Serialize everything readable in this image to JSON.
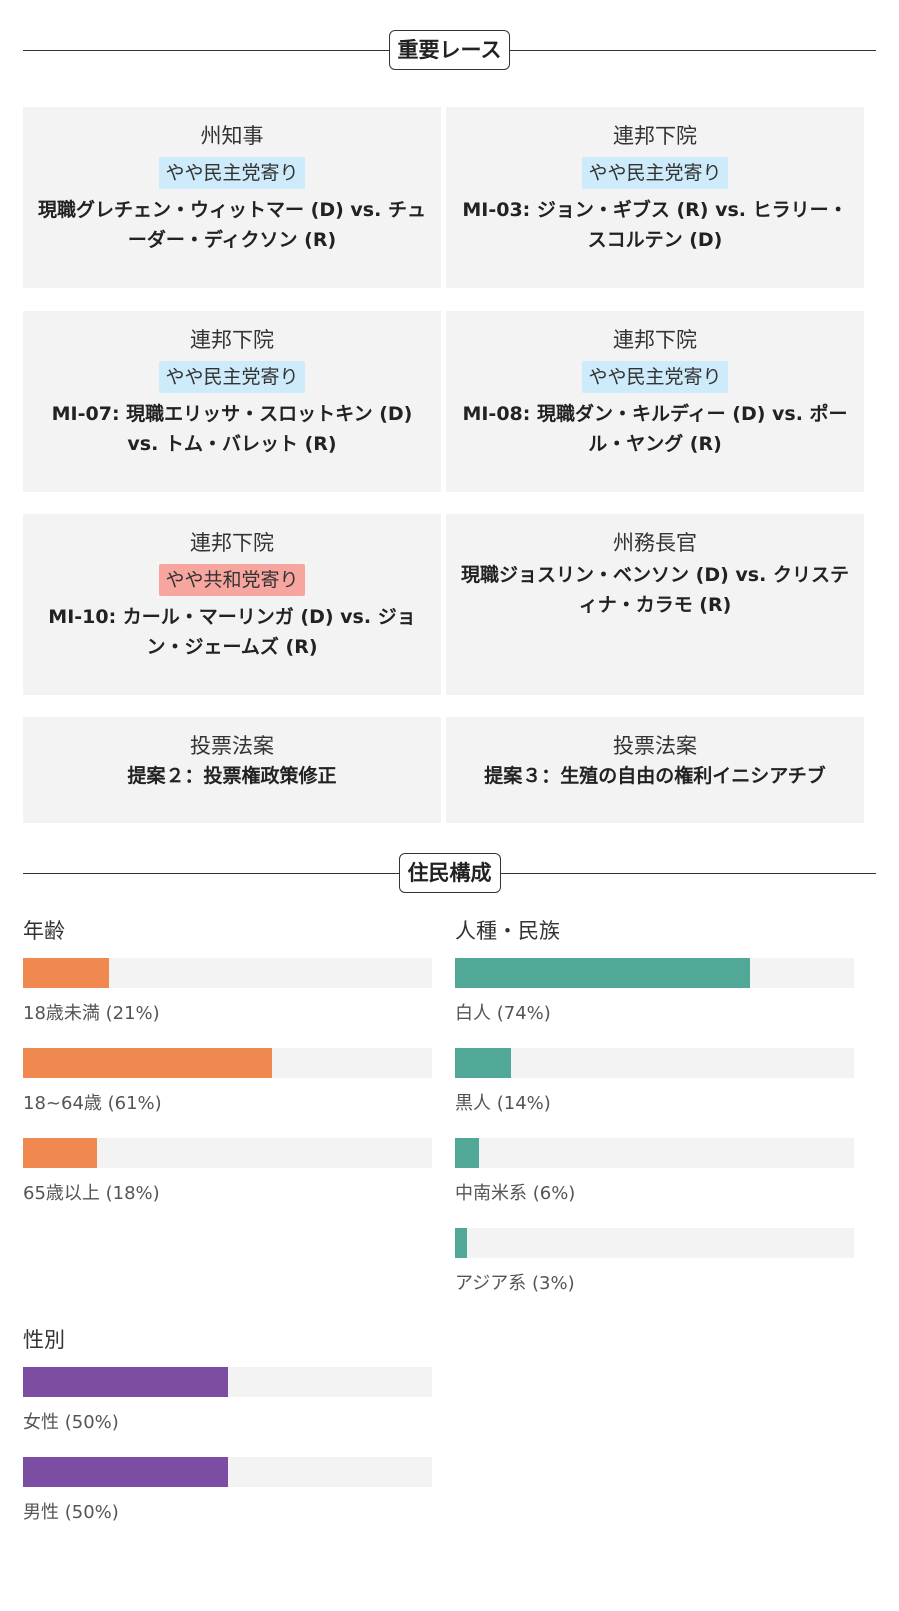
{
  "key_races": {
    "title": "重要レース",
    "cards": [
      {
        "type": "州知事",
        "badge": "やや民主党寄り",
        "badge_color": "#cdebfa",
        "matchup": "現職グレチェン・ウィットマー (D) vs. チューダー・ディクソン (R)"
      },
      {
        "type": "連邦下院",
        "badge": "やや民主党寄り",
        "badge_color": "#cdebfa",
        "matchup": "MI-03: ジョン・ギブス (R) vs. ヒラリー・スコルテン (D)"
      },
      {
        "type": "連邦下院",
        "badge": "やや民主党寄り",
        "badge_color": "#cdebfa",
        "matchup": "MI-07: 現職エリッサ・スロットキン (D) vs. トム・バレット (R)"
      },
      {
        "type": "連邦下院",
        "badge": "やや民主党寄り",
        "badge_color": "#cdebfa",
        "matchup": "MI-08: 現職ダン・キルディー (D) vs. ポール・ヤング (R)"
      },
      {
        "type": "連邦下院",
        "badge": "やや共和党寄り",
        "badge_color": "#f7a59f",
        "matchup": "MI-10: カール・マーリンガ (D) vs. ジョン・ジェームズ (R)"
      },
      {
        "type": "州務長官",
        "badge": "",
        "badge_color": "",
        "matchup": "現職ジョスリン・ベンソン (D) vs. クリスティナ・カラモ (R)"
      },
      {
        "type": "投票法案",
        "badge": "",
        "badge_color": "",
        "matchup": "提案２：投票権政策修正"
      },
      {
        "type": "投票法案",
        "badge": "",
        "badge_color": "",
        "matchup": "提案３：生殖の自由の権利イニシアチブ"
      }
    ]
  },
  "demographics": {
    "title": "住民構成",
    "groups": [
      {
        "title": "年齢",
        "color": "#f0894f",
        "items": [
          {
            "label": "18歳未満 (21%)",
            "value": 21
          },
          {
            "label": "18~64歳 (61%)",
            "value": 61
          },
          {
            "label": "65歳以上 (18%)",
            "value": 18
          }
        ]
      },
      {
        "title": "人種・民族",
        "color": "#52a896",
        "items": [
          {
            "label": "白人 (74%)",
            "value": 74
          },
          {
            "label": "黒人 (14%)",
            "value": 14
          },
          {
            "label": "中南米系 (6%)",
            "value": 6
          },
          {
            "label": "アジア系 (3%)",
            "value": 3
          }
        ]
      },
      {
        "title": "性別",
        "color": "#7c4ea3",
        "items": [
          {
            "label": "女性 (50%)",
            "value": 50
          },
          {
            "label": "男性 (50%)",
            "value": 50
          }
        ]
      }
    ]
  }
}
